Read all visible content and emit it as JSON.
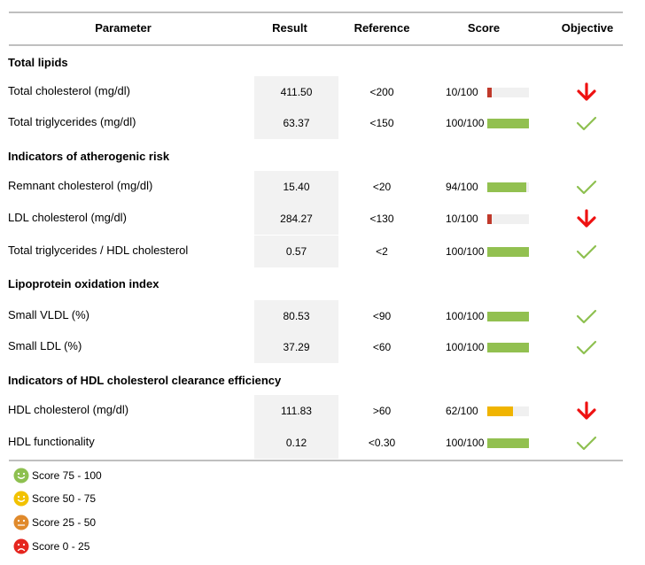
{
  "header": {
    "parameter": "Parameter",
    "result": "Result",
    "reference": "Reference",
    "score": "Score",
    "objective": "Objective"
  },
  "sections": [
    {
      "title": "Total lipids"
    },
    {
      "title": "Indicators of atherogenic risk"
    },
    {
      "title": "Lipoprotein oxidation index"
    },
    {
      "title": "Indicators of HDL cholesterol clearance efficiency"
    }
  ],
  "rows": [
    {
      "param": "Total cholesterol (mg/dl)",
      "result": "411.50",
      "reference": "<200",
      "score": "10/100",
      "score_pct": 10,
      "bar_color": "#c0392b",
      "objective": "down"
    },
    {
      "param": "Total triglycerides (mg/dl)",
      "result": "63.37",
      "reference": "<150",
      "score": "100/100",
      "score_pct": 100,
      "bar_color": "#92c050",
      "objective": "check"
    },
    {
      "param": "Remnant cholesterol (mg/dl)",
      "result": "15.40",
      "reference": "<20",
      "score": "94/100",
      "score_pct": 94,
      "bar_color": "#92c050",
      "objective": "check"
    },
    {
      "param": "LDL cholesterol (mg/dl)",
      "result": "284.27",
      "reference": "<130",
      "score": "10/100",
      "score_pct": 10,
      "bar_color": "#c0392b",
      "objective": "down"
    },
    {
      "param": "Total triglycerides / HDL cholesterol",
      "result": "0.57",
      "reference": "<2",
      "score": "100/100",
      "score_pct": 100,
      "bar_color": "#92c050",
      "objective": "check"
    },
    {
      "param": "Small VLDL (%)",
      "result": "80.53",
      "reference": "<90",
      "score": "100/100",
      "score_pct": 100,
      "bar_color": "#92c050",
      "objective": "check"
    },
    {
      "param": "Small LDL (%)",
      "result": "37.29",
      "reference": "<60",
      "score": "100/100",
      "score_pct": 100,
      "bar_color": "#92c050",
      "objective": "check"
    },
    {
      "param": "HDL cholesterol (mg/dl)",
      "result": "111.83",
      "reference": ">60",
      "score": "62/100",
      "score_pct": 62,
      "bar_color": "#f0b400",
      "objective": "down"
    },
    {
      "param": "HDL functionality",
      "result": "0.12",
      "reference": "<0.30",
      "score": "100/100",
      "score_pct": 100,
      "bar_color": "#92c050",
      "objective": "check"
    }
  ],
  "legend": [
    {
      "label": "Score 75 - 100",
      "color": "#8ec050",
      "face": "happy"
    },
    {
      "label": "Score 50 - 75",
      "color": "#f2c200",
      "face": "smile"
    },
    {
      "label": "Score 25 - 50",
      "color": "#e08a2c",
      "face": "neutral"
    },
    {
      "label": "Score 0 - 25",
      "color": "#e5261f",
      "face": "sad"
    }
  ],
  "colors": {
    "arrow_down": "#ee1111",
    "check": "#8ec050",
    "rule": "#bfbfbf",
    "result_bg": "#f2f2f2"
  }
}
